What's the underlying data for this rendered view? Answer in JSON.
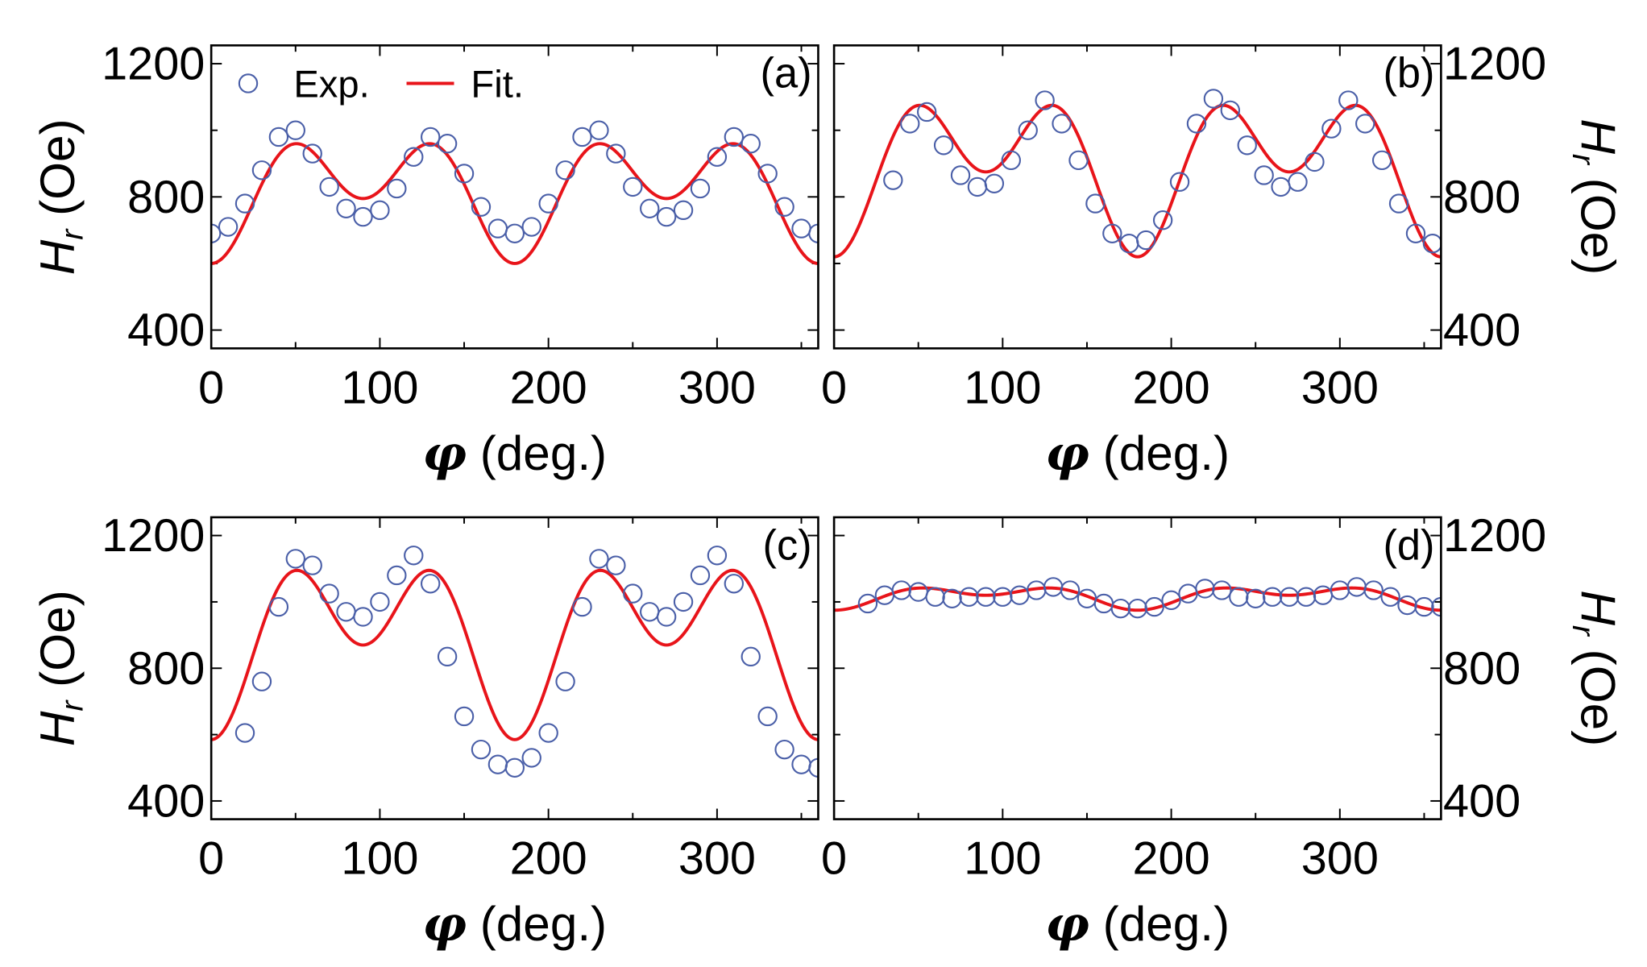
{
  "chart_data": [
    {
      "type": "scatter",
      "panel_label": "(a)",
      "xlabel_symbol": "φ",
      "xlabel_unit": " (deg.)",
      "ylabel_symbol": "H",
      "ylabel_sub": "r",
      "ylabel_unit": " (Oe)",
      "xlim": [
        0,
        360
      ],
      "ylim": [
        345,
        1255
      ],
      "xticks": [
        0,
        100,
        200,
        300
      ],
      "yticks": [
        400,
        800,
        1200
      ],
      "y_axis_side": "left",
      "legend": {
        "placement": "top-left",
        "entries": [
          "Exp.",
          "Fit."
        ]
      },
      "series": [
        {
          "name": "Exp.",
          "kind": "markers",
          "x": [
            0,
            10,
            20,
            30,
            40,
            50,
            60,
            70,
            80,
            90,
            100,
            110,
            120,
            130,
            140,
            150,
            160,
            170,
            180,
            190,
            200,
            210,
            220,
            230,
            240,
            250,
            260,
            270,
            280,
            290,
            300,
            310,
            320,
            330,
            340,
            350,
            360
          ],
          "y": [
            690,
            710,
            780,
            880,
            980,
            1000,
            930,
            830,
            765,
            740,
            760,
            825,
            920,
            980,
            960,
            870,
            770,
            705,
            690,
            710,
            780,
            880,
            980,
            1000,
            930,
            830,
            765,
            740,
            760,
            825,
            920,
            980,
            960,
            870,
            770,
            705,
            690
          ]
        },
        {
          "name": "Fit.",
          "kind": "line",
          "model": "A + B·cos(2φ) + C·cos(4φ)",
          "A": 824,
          "B": -97.5,
          "C": -126.5
        }
      ]
    },
    {
      "type": "scatter",
      "panel_label": "(b)",
      "xlabel_symbol": "φ",
      "xlabel_unit": " (deg.)",
      "ylabel_symbol": "H",
      "ylabel_sub": "r",
      "ylabel_unit": " (Oe)",
      "xlim": [
        0,
        360
      ],
      "ylim": [
        345,
        1255
      ],
      "xticks": [
        0,
        100,
        200,
        300
      ],
      "yticks": [
        400,
        800,
        1200
      ],
      "y_axis_side": "right",
      "series": [
        {
          "name": "Exp.",
          "kind": "markers",
          "x": [
            35,
            45,
            55,
            65,
            75,
            85,
            95,
            105,
            115,
            125,
            135,
            145,
            155,
            165,
            175,
            185,
            195,
            205,
            215,
            225,
            235,
            245,
            255,
            265,
            275,
            285,
            295,
            305,
            315,
            325,
            335,
            345,
            355
          ],
          "y": [
            850,
            1020,
            1055,
            955,
            865,
            830,
            840,
            910,
            1000,
            1090,
            1020,
            910,
            780,
            690,
            660,
            670,
            730,
            845,
            1020,
            1095,
            1060,
            955,
            865,
            830,
            845,
            905,
            1005,
            1090,
            1020,
            910,
            780,
            690,
            660
          ]
        },
        {
          "name": "Fit.",
          "kind": "line",
          "model": "A + B·cos(2φ) + C·cos(4φ)",
          "A": 904.8,
          "B": -127.5,
          "C": -157.3
        }
      ]
    },
    {
      "type": "scatter",
      "panel_label": "(c)",
      "xlabel_symbol": "φ",
      "xlabel_unit": " (deg.)",
      "ylabel_symbol": "H",
      "ylabel_sub": "r",
      "ylabel_unit": " (Oe)",
      "xlim": [
        0,
        360
      ],
      "ylim": [
        345,
        1255
      ],
      "xticks": [
        0,
        100,
        200,
        300
      ],
      "yticks": [
        400,
        800,
        1200
      ],
      "y_axis_side": "left",
      "series": [
        {
          "name": "Exp.",
          "kind": "markers",
          "x": [
            20,
            30,
            40,
            50,
            60,
            70,
            80,
            90,
            100,
            110,
            120,
            130,
            140,
            150,
            160,
            170,
            180,
            190,
            200,
            210,
            220,
            230,
            240,
            250,
            260,
            270,
            280,
            290,
            300,
            310,
            320,
            330,
            340,
            350,
            360
          ],
          "y": [
            605,
            760,
            985,
            1130,
            1110,
            1025,
            970,
            955,
            1000,
            1080,
            1140,
            1055,
            835,
            655,
            555,
            510,
            500,
            530,
            605,
            760,
            985,
            1130,
            1110,
            1025,
            970,
            955,
            1000,
            1080,
            1140,
            1055,
            835,
            655,
            555,
            510,
            500
          ]
        },
        {
          "name": "Fit.",
          "kind": "line",
          "model": "A + B·cos(2φ) + C·cos(4φ)",
          "A": 904.1,
          "B": -142.5,
          "C": -176.6
        }
      ]
    },
    {
      "type": "scatter",
      "panel_label": "(d)",
      "xlabel_symbol": "φ",
      "xlabel_unit": " (deg.)",
      "ylabel_symbol": "H",
      "ylabel_sub": "r",
      "ylabel_unit": " (Oe)",
      "xlim": [
        0,
        360
      ],
      "ylim": [
        345,
        1255
      ],
      "xticks": [
        0,
        100,
        200,
        300
      ],
      "yticks": [
        400,
        800,
        1200
      ],
      "y_axis_side": "right",
      "series": [
        {
          "name": "Exp.",
          "kind": "markers",
          "x": [
            20,
            30,
            40,
            50,
            60,
            70,
            80,
            90,
            100,
            110,
            120,
            130,
            140,
            150,
            160,
            170,
            180,
            190,
            200,
            210,
            220,
            230,
            240,
            250,
            260,
            270,
            280,
            290,
            300,
            310,
            320,
            330,
            340,
            350,
            360
          ],
          "y": [
            995,
            1020,
            1035,
            1030,
            1015,
            1010,
            1015,
            1015,
            1015,
            1020,
            1035,
            1045,
            1035,
            1010,
            995,
            980,
            980,
            985,
            1005,
            1025,
            1040,
            1035,
            1015,
            1010,
            1015,
            1015,
            1015,
            1020,
            1035,
            1045,
            1035,
            1015,
            990,
            985,
            985
          ]
        },
        {
          "name": "Fit.",
          "kind": "line",
          "model": "A + B·cos(2φ) + C·cos(4φ)",
          "A": 1018.2,
          "B": -22.5,
          "C": -20.7
        }
      ]
    }
  ],
  "colors": {
    "markers": "#4a5fa8",
    "fit": "#e8141a",
    "axes": "#000000"
  }
}
